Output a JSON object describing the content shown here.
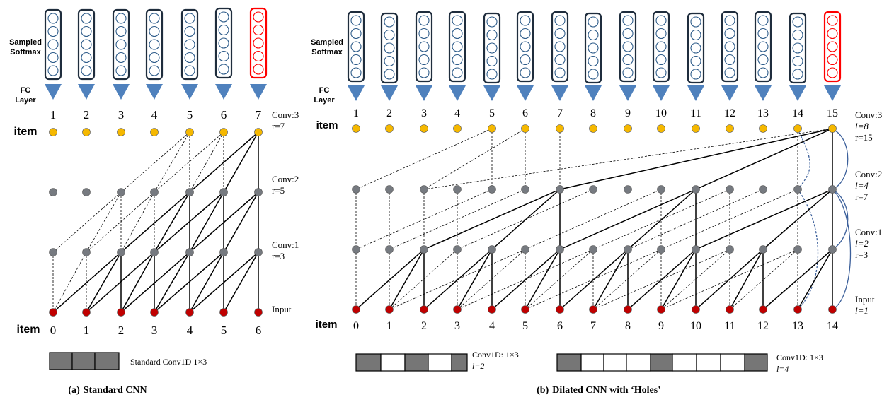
{
  "panel_a": {
    "sampled_softmax_line1": "Sampled",
    "sampled_softmax_line2": "Softmax",
    "fc_line1": "FC",
    "fc_line2": "Layer",
    "item_top_label": "item",
    "item_bottom_label": "item",
    "top_indices": [
      "1",
      "2",
      "3",
      "4",
      "5",
      "6",
      "7"
    ],
    "bottom_indices": [
      "0",
      "1",
      "2",
      "3",
      "4",
      "5",
      "6"
    ],
    "conv3_line1": "Conv:3",
    "conv3_line2": "r=7",
    "conv2_line1": "Conv:2",
    "conv2_line2": "r=5",
    "conv1_line1": "Conv:1",
    "conv1_line2": "r=3",
    "input_label": "Input",
    "kernel_label": "Standard Conv1D  1×3",
    "caption_prefix": "(a)",
    "caption_text": "Standard CNN"
  },
  "panel_b": {
    "sampled_softmax_line1": "Sampled",
    "sampled_softmax_line2": "Softmax",
    "fc_line1": "FC",
    "fc_line2": "Layer",
    "item_top_label": "item",
    "item_bottom_label": "item",
    "top_indices": [
      "1",
      "2",
      "3",
      "4",
      "5",
      "6",
      "7",
      "8",
      "9",
      "10",
      "11",
      "12",
      "13",
      "14",
      "15"
    ],
    "bottom_indices": [
      "0",
      "1",
      "2",
      "3",
      "4",
      "5",
      "6",
      "7",
      "8",
      "9",
      "10",
      "11",
      "12",
      "13",
      "14"
    ],
    "conv3_line1": "Conv:3",
    "conv3_line2": "l=8",
    "conv3_line3": "r=15",
    "conv2_line1": "Conv:2",
    "conv2_line2": "l=4",
    "conv2_line3": "r=7",
    "conv1_line1": "Conv:1",
    "conv1_line2": "l=2",
    "conv1_line3": "r=3",
    "input_line1": "Input",
    "input_line2": "l=1",
    "kernel1_line1": "Conv1D: 1×3",
    "kernel1_line2": "l=2",
    "kernel2_line1": "Conv1D: 1×3",
    "kernel2_line2": "l=4",
    "caption_prefix": "(b)",
    "caption_text": "Dilated CNN with ‘Holes’"
  },
  "colors": {
    "item_node": "#f5b800",
    "hidden_node": "#767a80",
    "input_node": "#c00000",
    "fc_triangle": "#4f81bd",
    "softmax_box": "#1f2d3d",
    "softmax_box_highlight": "#ff0000",
    "softmax_circle": "#2e5c8a",
    "kernel_fill": "#767676",
    "arc": "#3b5f9a"
  }
}
